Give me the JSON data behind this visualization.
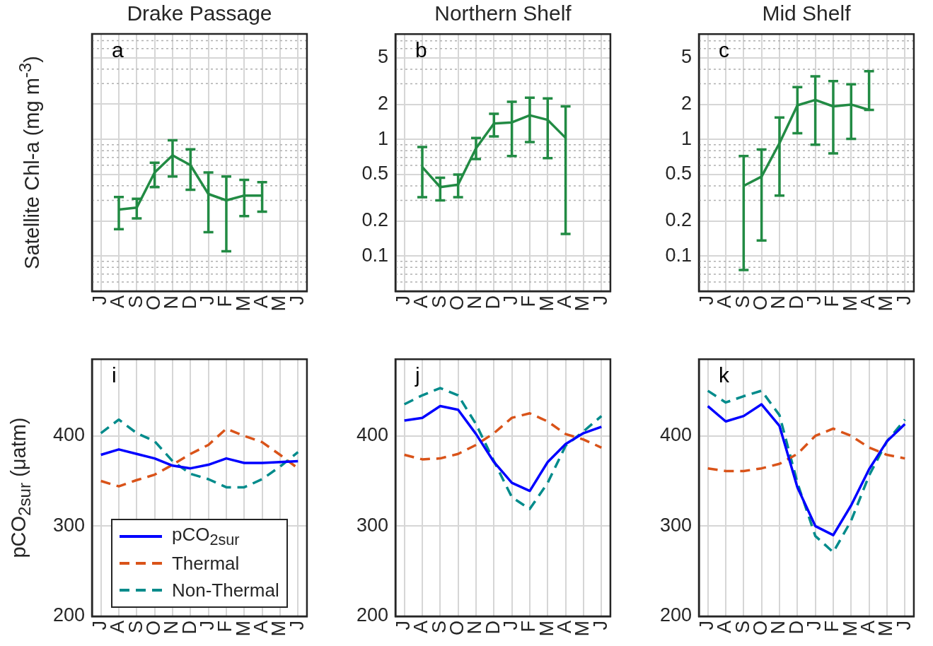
{
  "chart_data": [
    {
      "type": "line",
      "title": "Drake Passage",
      "ylabel": "Satellite Chl-a (mg m$^{-3}$)",
      "annotations": [
        "a"
      ],
      "categories": [
        "J",
        "A",
        "S",
        "O",
        "N",
        "D",
        "J",
        "F",
        "M",
        "A",
        "M",
        "J"
      ],
      "series": [
        {
          "color": "#228b44",
          "values": [
            null,
            0.25,
            0.26,
            0.52,
            0.73,
            0.6,
            0.34,
            0.3,
            0.33,
            0.33,
            null,
            null
          ],
          "errors": [
            null,
            [
              0.17,
              0.32
            ],
            [
              0.21,
              0.31
            ],
            [
              0.39,
              0.63
            ],
            [
              0.48,
              0.98
            ],
            [
              0.37,
              0.82
            ],
            [
              0.16,
              0.52
            ],
            [
              0.11,
              0.48
            ],
            [
              0.22,
              0.45
            ],
            [
              0.24,
              0.43
            ],
            null,
            null
          ]
        }
      ],
      "log": true,
      "ylim": [
        0.05,
        8
      ],
      "yticks": [
        {
          "value": 0.06,
          "label": null
        },
        {
          "value": 0.07,
          "label": null
        },
        {
          "value": 0.08,
          "label": null
        },
        {
          "value": 0.09,
          "label": null
        },
        0.1,
        0.2,
        {
          "value": 0.3,
          "label": null
        },
        {
          "value": 0.4,
          "label": null
        },
        0.5,
        {
          "value": 0.6,
          "label": null
        },
        {
          "value": 0.7,
          "label": null
        },
        {
          "value": 0.8,
          "label": null
        },
        {
          "value": 0.9,
          "label": null
        },
        1,
        2,
        {
          "value": 3,
          "label": null
        },
        {
          "value": 4,
          "label": null
        },
        5,
        {
          "value": 6,
          "label": null
        },
        {
          "value": 7,
          "label": null
        }
      ],
      "grid": true,
      "marker": "none",
      "tick_labels": "x"
    },
    {
      "type": "line",
      "title": "Northern Shelf",
      "annotations": [
        "b"
      ],
      "categories": [
        "J",
        "A",
        "S",
        "O",
        "N",
        "D",
        "J",
        "F",
        "M",
        "A",
        "M",
        "J"
      ],
      "series": [
        {
          "color": "#228b44",
          "values": [
            null,
            0.58,
            0.39,
            0.41,
            0.84,
            1.37,
            1.4,
            1.61,
            1.47,
            1.03,
            null,
            null
          ],
          "errors": [
            null,
            [
              0.32,
              0.86
            ],
            [
              0.3,
              0.47
            ],
            [
              0.32,
              0.5
            ],
            [
              0.68,
              1.03
            ],
            [
              1.06,
              1.66
            ],
            [
              0.72,
              2.1
            ],
            [
              0.95,
              2.28
            ],
            [
              0.69,
              2.25
            ],
            [
              0.155,
              1.92
            ],
            null,
            null
          ]
        }
      ],
      "log": true,
      "ylim": [
        0.05,
        8
      ],
      "yticks": [
        {
          "value": 0.06,
          "label": null
        },
        {
          "value": 0.07,
          "label": null
        },
        {
          "value": 0.08,
          "label": null
        },
        {
          "value": 0.09,
          "label": null
        },
        0.1,
        0.2,
        {
          "value": 0.3,
          "label": null
        },
        {
          "value": 0.4,
          "label": null
        },
        0.5,
        {
          "value": 0.6,
          "label": null
        },
        {
          "value": 0.7,
          "label": null
        },
        {
          "value": 0.8,
          "label": null
        },
        {
          "value": 0.9,
          "label": null
        },
        1,
        2,
        {
          "value": 3,
          "label": null
        },
        {
          "value": 4,
          "label": null
        },
        5,
        {
          "value": 6,
          "label": null
        },
        {
          "value": 7,
          "label": null
        }
      ],
      "grid": true,
      "marker": "none"
    },
    {
      "type": "line",
      "title": "Mid Shelf",
      "annotations": [
        "c"
      ],
      "categories": [
        "J",
        "A",
        "S",
        "O",
        "N",
        "D",
        "J",
        "F",
        "M",
        "A",
        "M",
        "J"
      ],
      "series": [
        {
          "color": "#228b44",
          "values": [
            null,
            null,
            0.4,
            0.48,
            0.93,
            1.96,
            2.18,
            1.92,
            1.99,
            1.79,
            null,
            null
          ],
          "errors": [
            null,
            null,
            [
              0.076,
              0.72
            ],
            [
              0.136,
              0.82
            ],
            [
              0.33,
              1.54
            ],
            [
              1.13,
              2.81
            ],
            [
              0.9,
              3.47
            ],
            [
              0.76,
              3.16
            ],
            [
              1.01,
              2.97
            ],
            [
              1.79,
              3.85
            ],
            null,
            null
          ]
        }
      ],
      "log": true,
      "ylim": [
        0.05,
        8
      ],
      "yticks": [
        {
          "value": 0.06,
          "label": null
        },
        {
          "value": 0.07,
          "label": null
        },
        {
          "value": 0.08,
          "label": null
        },
        {
          "value": 0.09,
          "label": null
        },
        0.1,
        0.2,
        {
          "value": 0.3,
          "label": null
        },
        {
          "value": 0.4,
          "label": null
        },
        0.5,
        {
          "value": 0.6,
          "label": null
        },
        {
          "value": 0.7,
          "label": null
        },
        {
          "value": 0.8,
          "label": null
        },
        {
          "value": 0.9,
          "label": null
        },
        1,
        2,
        {
          "value": 3,
          "label": null
        },
        {
          "value": 4,
          "label": null
        },
        5,
        {
          "value": 6,
          "label": null
        },
        {
          "value": 7,
          "label": null
        }
      ],
      "grid": true,
      "marker": "none"
    },
    {
      "type": "line",
      "ylabel": "pCO$_{2sur}$ (μatm)",
      "annotations": [
        "i"
      ],
      "categories": [
        "J",
        "A",
        "S",
        "O",
        "N",
        "D",
        "J",
        "F",
        "M",
        "A",
        "M",
        "J"
      ],
      "series": [
        {
          "name": "pCO$_{2sur}$",
          "color": "#0000ff",
          "line_style": "solid",
          "values": [
            379,
            385,
            380,
            375,
            367,
            364,
            368,
            375,
            370,
            370,
            371,
            372
          ]
        },
        {
          "name": "Thermal",
          "color": "#d95319",
          "line_style": "dashed",
          "values": [
            350,
            344,
            351,
            357,
            368,
            380,
            390,
            408,
            400,
            393,
            379,
            364
          ]
        },
        {
          "name": "Non-Thermal",
          "color": "#008b8b",
          "line_style": "dashed",
          "values": [
            403,
            418,
            403,
            394,
            372,
            358,
            352,
            343,
            343,
            352,
            366,
            382
          ]
        }
      ],
      "ylim": [
        200,
        485
      ],
      "yticks": [
        200,
        300,
        400
      ],
      "grid": true,
      "marker": "none",
      "legend": "bottom"
    },
    {
      "type": "line",
      "annotations": [
        "j"
      ],
      "categories": [
        "J",
        "A",
        "S",
        "O",
        "N",
        "D",
        "J",
        "F",
        "M",
        "A",
        "M",
        "J"
      ],
      "series": [
        {
          "color": "#0000ff",
          "line_style": "solid",
          "values": [
            417,
            420,
            433,
            429,
            402,
            371,
            348,
            339,
            371,
            391,
            403,
            410
          ]
        },
        {
          "color": "#d95319",
          "line_style": "dashed",
          "values": [
            379,
            374,
            375,
            380,
            390,
            403,
            420,
            425,
            416,
            402,
            396,
            387
          ]
        },
        {
          "color": "#008b8b",
          "line_style": "dashed",
          "values": [
            435,
            445,
            453,
            445,
            413,
            372,
            332,
            319,
            348,
            389,
            405,
            422
          ]
        }
      ],
      "ylim": [
        200,
        485
      ],
      "yticks": [
        200,
        300,
        400
      ],
      "grid": true,
      "marker": "none"
    },
    {
      "type": "line",
      "annotations": [
        "k"
      ],
      "categories": [
        "J",
        "A",
        "S",
        "O",
        "N",
        "D",
        "J",
        "F",
        "M",
        "A",
        "M",
        "J"
      ],
      "series": [
        {
          "color": "#0000ff",
          "line_style": "solid",
          "values": [
            433,
            416,
            422,
            435,
            411,
            343,
            300,
            290,
            323,
            363,
            394,
            413
          ]
        },
        {
          "color": "#d95319",
          "line_style": "dashed",
          "values": [
            364,
            361,
            361,
            364,
            369,
            380,
            400,
            408,
            400,
            387,
            379,
            375
          ]
        },
        {
          "color": "#008b8b",
          "line_style": "dashed",
          "values": [
            450,
            437,
            444,
            450,
            423,
            348,
            289,
            271,
            306,
            356,
            394,
            418
          ]
        }
      ],
      "ylim": [
        200,
        485
      ],
      "yticks": [
        200,
        300,
        400
      ],
      "grid": true,
      "marker": "none"
    }
  ]
}
